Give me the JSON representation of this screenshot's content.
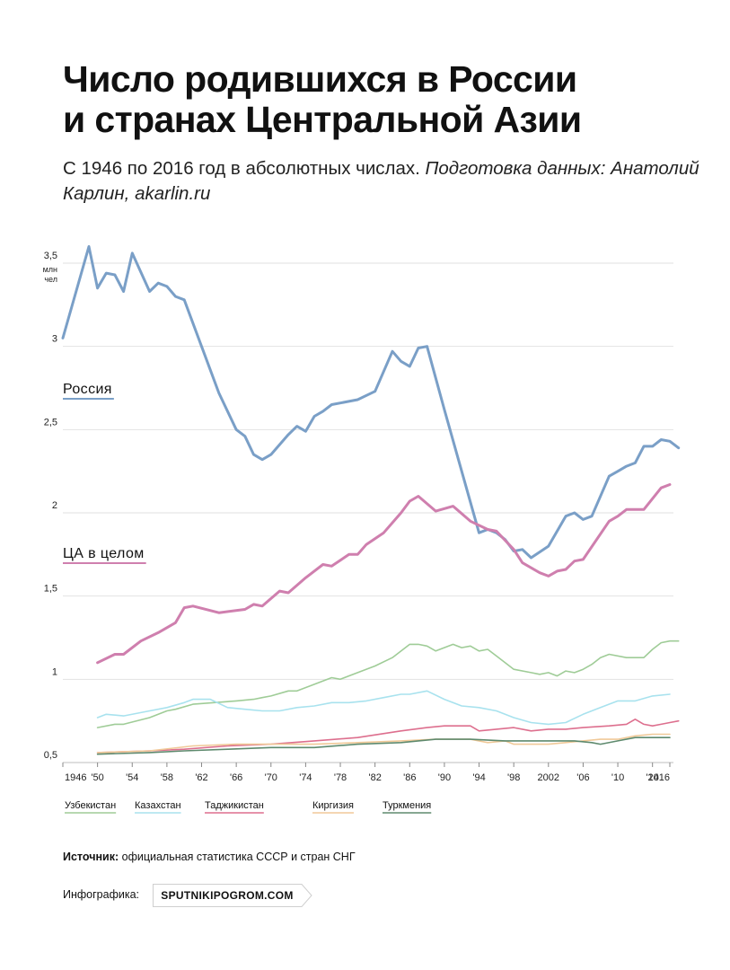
{
  "title": {
    "line1": "Число родившихся в России",
    "line2": "и странах Центральной Азии"
  },
  "subtitle": {
    "plain": "С 1946 по 2016 год в абсолютных числах. ",
    "italic": "Подготовка данных: Анатолий Карлин, akarlin.ru"
  },
  "source": {
    "label": "Источник:",
    "text": " официальная статистика СССР и стран СНГ"
  },
  "credit": {
    "label": "Инфографика:",
    "badge": "SPUTNIKIPOGROM.COM"
  },
  "chart_data": {
    "type": "line",
    "unit_label": [
      "млн",
      "чел"
    ],
    "ylim": [
      0.5,
      3.5
    ],
    "yticks": [
      0.5,
      1,
      1.5,
      2,
      2.5,
      3,
      3.5
    ],
    "ytick_labels": [
      "0,5",
      "1",
      "1,5",
      "2",
      "2,5",
      "3",
      "3,5"
    ],
    "xlim": [
      1946,
      2016
    ],
    "xticks": [
      1946,
      1950,
      1954,
      1958,
      1962,
      1966,
      1970,
      1974,
      1978,
      1982,
      1986,
      1990,
      1994,
      1998,
      2002,
      2006,
      2010,
      2014,
      2016
    ],
    "xtick_labels": [
      "1946",
      "'50",
      "'54",
      "'58",
      "'62",
      "'66",
      "'70",
      "'74",
      "'78",
      "'82",
      "'86",
      "'90",
      "'94",
      "'98",
      "2002",
      "'06",
      "'10",
      "'14",
      "2016"
    ],
    "grid": true,
    "series": [
      {
        "name": "Россия",
        "key": "russia",
        "color": "#7a9fc7",
        "width": 3,
        "inline_label": true,
        "points": [
          [
            1946,
            3.05
          ],
          [
            1949,
            3.6
          ],
          [
            1950,
            3.35
          ],
          [
            1951,
            3.44
          ],
          [
            1952,
            3.43
          ],
          [
            1953,
            3.33
          ],
          [
            1954,
            3.56
          ],
          [
            1956,
            3.33
          ],
          [
            1957,
            3.38
          ],
          [
            1958,
            3.36
          ],
          [
            1959,
            3.3
          ],
          [
            1960,
            3.28
          ],
          [
            1962,
            3.0
          ],
          [
            1964,
            2.72
          ],
          [
            1966,
            2.5
          ],
          [
            1967,
            2.46
          ],
          [
            1968,
            2.35
          ],
          [
            1969,
            2.32
          ],
          [
            1970,
            2.35
          ],
          [
            1972,
            2.47
          ],
          [
            1973,
            2.52
          ],
          [
            1974,
            2.49
          ],
          [
            1975,
            2.58
          ],
          [
            1976,
            2.61
          ],
          [
            1977,
            2.65
          ],
          [
            1980,
            2.68
          ],
          [
            1982,
            2.73
          ],
          [
            1984,
            2.97
          ],
          [
            1985,
            2.91
          ],
          [
            1986,
            2.88
          ],
          [
            1987,
            2.99
          ],
          [
            1988,
            3.0
          ],
          [
            1990,
            2.62
          ],
          [
            1992,
            2.25
          ],
          [
            1994,
            1.88
          ],
          [
            1995,
            1.9
          ],
          [
            1996,
            1.88
          ],
          [
            1997,
            1.84
          ],
          [
            1998,
            1.77
          ],
          [
            1999,
            1.78
          ],
          [
            2000,
            1.73
          ],
          [
            2002,
            1.8
          ],
          [
            2004,
            1.98
          ],
          [
            2005,
            2.0
          ],
          [
            2006,
            1.96
          ],
          [
            2007,
            1.98
          ],
          [
            2009,
            2.22
          ],
          [
            2010,
            2.25
          ],
          [
            2011,
            2.28
          ],
          [
            2012,
            2.3
          ],
          [
            2013,
            2.4
          ],
          [
            2014,
            2.4
          ],
          [
            2015,
            2.44
          ],
          [
            2016,
            2.43
          ],
          [
            2017,
            2.39
          ]
        ]
      },
      {
        "name": "ЦА в целом",
        "key": "ca_total",
        "color": "#cf7fae",
        "width": 3,
        "inline_label": true,
        "points": [
          [
            1950,
            1.1
          ],
          [
            1952,
            1.15
          ],
          [
            1953,
            1.15
          ],
          [
            1955,
            1.23
          ],
          [
            1957,
            1.28
          ],
          [
            1959,
            1.34
          ],
          [
            1960,
            1.43
          ],
          [
            1961,
            1.44
          ],
          [
            1964,
            1.4
          ],
          [
            1967,
            1.42
          ],
          [
            1968,
            1.45
          ],
          [
            1969,
            1.44
          ],
          [
            1971,
            1.53
          ],
          [
            1972,
            1.52
          ],
          [
            1974,
            1.61
          ],
          [
            1976,
            1.69
          ],
          [
            1977,
            1.68
          ],
          [
            1979,
            1.75
          ],
          [
            1980,
            1.75
          ],
          [
            1981,
            1.81
          ],
          [
            1983,
            1.88
          ],
          [
            1985,
            2.0
          ],
          [
            1986,
            2.07
          ],
          [
            1987,
            2.1
          ],
          [
            1989,
            2.01
          ],
          [
            1991,
            2.04
          ],
          [
            1993,
            1.95
          ],
          [
            1995,
            1.9
          ],
          [
            1996,
            1.89
          ],
          [
            1998,
            1.78
          ],
          [
            1999,
            1.7
          ],
          [
            2001,
            1.64
          ],
          [
            2002,
            1.62
          ],
          [
            2003,
            1.65
          ],
          [
            2004,
            1.66
          ],
          [
            2005,
            1.71
          ],
          [
            2006,
            1.72
          ],
          [
            2009,
            1.95
          ],
          [
            2010,
            1.98
          ],
          [
            2011,
            2.02
          ],
          [
            2012,
            2.02
          ],
          [
            2013,
            2.02
          ],
          [
            2015,
            2.15
          ],
          [
            2016,
            2.17
          ]
        ]
      },
      {
        "name": "Узбекистан",
        "key": "uzbekistan",
        "color": "#9fcc97",
        "width": 1.6,
        "points": [
          [
            1950,
            0.71
          ],
          [
            1952,
            0.73
          ],
          [
            1953,
            0.73
          ],
          [
            1956,
            0.77
          ],
          [
            1958,
            0.81
          ],
          [
            1959,
            0.82
          ],
          [
            1961,
            0.85
          ],
          [
            1966,
            0.87
          ],
          [
            1968,
            0.88
          ],
          [
            1969,
            0.89
          ],
          [
            1970,
            0.9
          ],
          [
            1972,
            0.93
          ],
          [
            1973,
            0.93
          ],
          [
            1975,
            0.97
          ],
          [
            1977,
            1.01
          ],
          [
            1978,
            1.0
          ],
          [
            1980,
            1.04
          ],
          [
            1982,
            1.08
          ],
          [
            1984,
            1.13
          ],
          [
            1986,
            1.21
          ],
          [
            1987,
            1.21
          ],
          [
            1988,
            1.2
          ],
          [
            1989,
            1.17
          ],
          [
            1991,
            1.21
          ],
          [
            1992,
            1.19
          ],
          [
            1993,
            1.2
          ],
          [
            1994,
            1.17
          ],
          [
            1995,
            1.18
          ],
          [
            1996,
            1.14
          ],
          [
            1998,
            1.06
          ],
          [
            2000,
            1.04
          ],
          [
            2001,
            1.03
          ],
          [
            2002,
            1.04
          ],
          [
            2003,
            1.02
          ],
          [
            2004,
            1.05
          ],
          [
            2005,
            1.04
          ],
          [
            2006,
            1.06
          ],
          [
            2007,
            1.09
          ],
          [
            2008,
            1.13
          ],
          [
            2009,
            1.15
          ],
          [
            2011,
            1.13
          ],
          [
            2013,
            1.13
          ],
          [
            2014,
            1.18
          ],
          [
            2015,
            1.22
          ],
          [
            2016,
            1.23
          ],
          [
            2017,
            1.23
          ]
        ]
      },
      {
        "name": "Казахстан",
        "key": "kazakhstan",
        "color": "#a8e2ee",
        "width": 1.6,
        "points": [
          [
            1950,
            0.77
          ],
          [
            1951,
            0.79
          ],
          [
            1953,
            0.78
          ],
          [
            1956,
            0.81
          ],
          [
            1958,
            0.83
          ],
          [
            1960,
            0.86
          ],
          [
            1961,
            0.88
          ],
          [
            1963,
            0.88
          ],
          [
            1965,
            0.83
          ],
          [
            1967,
            0.82
          ],
          [
            1969,
            0.81
          ],
          [
            1971,
            0.81
          ],
          [
            1973,
            0.83
          ],
          [
            1975,
            0.84
          ],
          [
            1977,
            0.86
          ],
          [
            1979,
            0.86
          ],
          [
            1981,
            0.87
          ],
          [
            1983,
            0.89
          ],
          [
            1985,
            0.91
          ],
          [
            1986,
            0.91
          ],
          [
            1988,
            0.93
          ],
          [
            1990,
            0.88
          ],
          [
            1992,
            0.84
          ],
          [
            1994,
            0.83
          ],
          [
            1996,
            0.81
          ],
          [
            1998,
            0.77
          ],
          [
            2000,
            0.74
          ],
          [
            2002,
            0.73
          ],
          [
            2004,
            0.74
          ],
          [
            2006,
            0.79
          ],
          [
            2008,
            0.83
          ],
          [
            2010,
            0.87
          ],
          [
            2012,
            0.87
          ],
          [
            2014,
            0.9
          ],
          [
            2016,
            0.91
          ]
        ]
      },
      {
        "name": "Таджикистан",
        "key": "tajikistan",
        "color": "#dd6f8e",
        "width": 1.6,
        "points": [
          [
            1950,
            0.56
          ],
          [
            1956,
            0.57
          ],
          [
            1960,
            0.58
          ],
          [
            1965,
            0.6
          ],
          [
            1970,
            0.61
          ],
          [
            1975,
            0.63
          ],
          [
            1980,
            0.65
          ],
          [
            1985,
            0.69
          ],
          [
            1988,
            0.71
          ],
          [
            1990,
            0.72
          ],
          [
            1993,
            0.72
          ],
          [
            1994,
            0.69
          ],
          [
            1996,
            0.7
          ],
          [
            1998,
            0.71
          ],
          [
            2000,
            0.69
          ],
          [
            2002,
            0.7
          ],
          [
            2004,
            0.7
          ],
          [
            2006,
            0.71
          ],
          [
            2009,
            0.72
          ],
          [
            2011,
            0.73
          ],
          [
            2012,
            0.76
          ],
          [
            2013,
            0.73
          ],
          [
            2014,
            0.72
          ],
          [
            2015,
            0.73
          ],
          [
            2016,
            0.74
          ],
          [
            2017,
            0.75
          ]
        ]
      },
      {
        "name": "Киргизия",
        "key": "kyrgyzstan",
        "color": "#f0c998",
        "width": 1.6,
        "points": [
          [
            1950,
            0.56
          ],
          [
            1956,
            0.57
          ],
          [
            1961,
            0.6
          ],
          [
            1966,
            0.61
          ],
          [
            1970,
            0.61
          ],
          [
            1975,
            0.61
          ],
          [
            1980,
            0.62
          ],
          [
            1985,
            0.63
          ],
          [
            1989,
            0.64
          ],
          [
            1993,
            0.64
          ],
          [
            1995,
            0.62
          ],
          [
            1997,
            0.63
          ],
          [
            1998,
            0.61
          ],
          [
            2000,
            0.61
          ],
          [
            2002,
            0.61
          ],
          [
            2004,
            0.62
          ],
          [
            2006,
            0.63
          ],
          [
            2008,
            0.64
          ],
          [
            2010,
            0.64
          ],
          [
            2012,
            0.66
          ],
          [
            2014,
            0.67
          ],
          [
            2016,
            0.67
          ]
        ]
      },
      {
        "name": "Туркмения",
        "key": "turkmenistan",
        "color": "#5e8a6e",
        "width": 1.6,
        "points": [
          [
            1950,
            0.55
          ],
          [
            1956,
            0.56
          ],
          [
            1960,
            0.57
          ],
          [
            1965,
            0.58
          ],
          [
            1970,
            0.59
          ],
          [
            1975,
            0.59
          ],
          [
            1980,
            0.61
          ],
          [
            1985,
            0.62
          ],
          [
            1989,
            0.64
          ],
          [
            1993,
            0.64
          ],
          [
            1997,
            0.63
          ],
          [
            2000,
            0.63
          ],
          [
            2003,
            0.63
          ],
          [
            2005,
            0.63
          ],
          [
            2007,
            0.62
          ],
          [
            2008,
            0.61
          ],
          [
            2010,
            0.63
          ],
          [
            2012,
            0.65
          ],
          [
            2014,
            0.65
          ],
          [
            2016,
            0.65
          ]
        ]
      }
    ],
    "legend": [
      "Узбекистан",
      "Казахстан",
      "Таджикистан",
      "Киргизия",
      "Туркмения"
    ]
  }
}
